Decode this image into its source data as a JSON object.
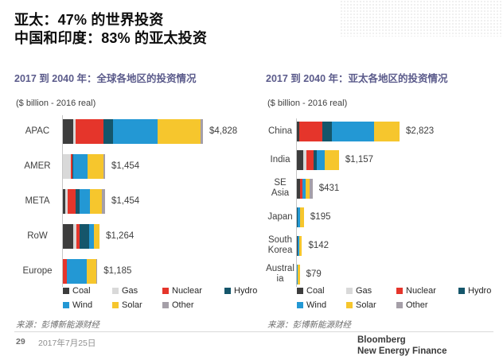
{
  "page": {
    "title_line1": "亚太：47% 的世界投资",
    "title_line2": "中国和印度：83% 的亚太投资"
  },
  "colors": {
    "title_accent": "#5b5b8b",
    "fuel": {
      "Coal": "#3d3d3d",
      "Gas": "#d9d9d9",
      "Nuclear": "#e5352b",
      "Hydro": "#15566b",
      "Wind": "#2398d4",
      "Solar": "#f6c62d",
      "Other": "#a59fa8"
    }
  },
  "legend": {
    "row1": [
      "Coal",
      "Gas",
      "Nuclear",
      "Hydro"
    ],
    "row2": [
      "Wind",
      "Solar",
      "Other"
    ]
  },
  "chart_data": [
    {
      "type": "bar",
      "orientation": "horizontal-stacked",
      "title": "2017 到 2040 年：全球各地区的投资情况",
      "axis_caption": "($ billion - 2016 real)",
      "source": "来源：彭博新能源财经",
      "unit": "$ billion (2016 real)",
      "legend_position": "bottom",
      "fuels": [
        "Coal",
        "Gas",
        "Nuclear",
        "Hydro",
        "Wind",
        "Solar",
        "Other"
      ],
      "rows": [
        {
          "label": "APAC",
          "total": 4828,
          "total_label": "$4,828",
          "values": [
            350,
            90,
            950,
            340,
            1530,
            1480,
            88
          ]
        },
        {
          "label": "AMER",
          "total": 1454,
          "total_label": "$1,454",
          "values": [
            0,
            285,
            40,
            35,
            500,
            530,
            64
          ]
        },
        {
          "label": "META",
          "total": 1454,
          "total_label": "$1,454",
          "values": [
            80,
            80,
            280,
            125,
            380,
            400,
            109
          ]
        },
        {
          "label": "RoW",
          "total": 1264,
          "total_label": "$1,264",
          "values": [
            370,
            110,
            95,
            335,
            165,
            189,
            0
          ]
        },
        {
          "label": "Europe",
          "total": 1185,
          "total_label": "$1,185",
          "values": [
            0,
            0,
            140,
            0,
            680,
            345,
            20
          ]
        }
      ]
    },
    {
      "type": "bar",
      "orientation": "horizontal-stacked",
      "title": "2017 到 2040 年：亚太各地区的投资情况",
      "axis_caption": "($ billion - 2016 real)",
      "source": "来源：彭博新能源财经",
      "unit": "$ billion (2016 real)",
      "legend_position": "bottom",
      "fuels": [
        "Coal",
        "Gas",
        "Nuclear",
        "Hydro",
        "Wind",
        "Solar",
        "Other"
      ],
      "rows": [
        {
          "label": "China",
          "total": 2823,
          "total_label": "$2,823",
          "values": [
            60,
            0,
            640,
            265,
            1160,
            698,
            0
          ]
        },
        {
          "label": "India",
          "total": 1157,
          "total_label": "$1,157",
          "values": [
            170,
            82,
            198,
            96,
            231,
            380,
            0
          ]
        },
        {
          "label": "SE\nAsia",
          "total": 431,
          "total_label": "$431",
          "values": [
            85,
            0,
            70,
            0,
            85,
            110,
            81
          ]
        },
        {
          "label": "Japan",
          "total": 195,
          "total_label": "$195",
          "values": [
            0,
            0,
            0,
            25,
            60,
            110,
            0
          ]
        },
        {
          "label": "South\nKorea",
          "total": 142,
          "total_label": "$142",
          "values": [
            25,
            0,
            0,
            0,
            40,
            77,
            0
          ]
        },
        {
          "label": "Austral\nia",
          "total": 79,
          "total_label": "$79",
          "values": [
            0,
            0,
            0,
            0,
            20,
            59,
            0
          ]
        }
      ]
    }
  ],
  "footer": {
    "page_number": "29",
    "date": "2017年7月25日",
    "brand_line1": "Bloomberg",
    "brand_line2": "New Energy Finance"
  }
}
